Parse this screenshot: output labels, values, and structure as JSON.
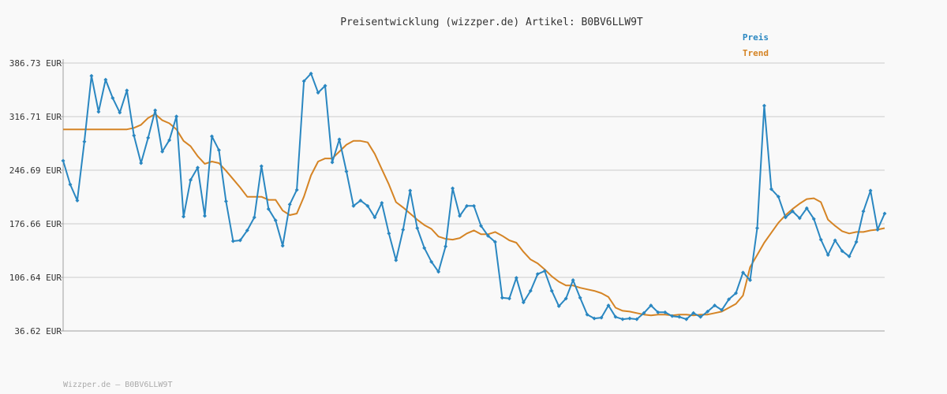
{
  "chart_data": {
    "type": "line",
    "title": "Preisentwicklung (wizzper.de) Artikel: B0BV6LLW9T",
    "xlabel": "",
    "ylabel": "",
    "ylim": [
      36.62,
      386.73
    ],
    "yticks": [
      "386.73 EUR",
      "316.71 EUR",
      "246.69 EUR",
      "176.66 EUR",
      "106.64 EUR",
      "36.62 EUR"
    ],
    "grid": true,
    "legend_position": "top-right",
    "series": [
      {
        "name": "Preis",
        "color": "#2a87c1",
        "values": [
          259,
          228,
          207,
          284,
          370,
          323,
          365,
          341,
          322,
          351,
          292,
          256,
          289,
          325,
          271,
          286,
          317,
          186,
          234,
          250,
          187,
          291,
          273,
          206,
          154,
          155,
          168,
          185,
          252,
          196,
          181,
          148,
          202,
          221,
          363,
          373,
          348,
          357,
          257,
          287,
          245,
          200,
          207,
          200,
          185,
          204,
          164,
          129,
          169,
          220,
          171,
          145,
          127,
          114,
          147,
          223,
          187,
          200,
          200,
          174,
          161,
          153,
          80,
          79,
          106,
          74,
          89,
          111,
          115,
          89,
          69,
          79,
          103,
          80,
          58,
          53,
          54,
          70,
          55,
          52,
          53,
          52,
          60,
          70,
          61,
          61,
          56,
          55,
          52,
          60,
          55,
          62,
          70,
          64,
          78,
          86,
          113,
          103,
          171,
          331,
          222,
          212,
          185,
          193,
          184,
          197,
          183,
          156,
          136,
          155,
          141,
          134,
          153,
          193,
          220,
          169,
          190
        ]
      },
      {
        "name": "Trend",
        "color": "#d58425",
        "values": [
          300,
          300,
          300,
          300,
          300,
          300,
          300,
          300,
          300,
          300,
          302,
          306,
          315,
          320,
          312,
          308,
          300,
          285,
          278,
          265,
          255,
          258,
          256,
          246,
          235,
          224,
          212,
          212,
          212,
          208,
          208,
          194,
          188,
          190,
          212,
          240,
          258,
          262,
          262,
          271,
          280,
          285,
          285,
          283,
          268,
          248,
          228,
          205,
          198,
          190,
          182,
          175,
          170,
          160,
          157,
          156,
          158,
          164,
          168,
          163,
          163,
          166,
          161,
          155,
          152,
          140,
          130,
          125,
          117,
          108,
          101,
          96,
          96,
          93,
          91,
          89,
          86,
          81,
          67,
          63,
          62,
          60,
          58,
          57,
          58,
          58,
          57,
          58,
          58,
          57,
          58,
          58,
          60,
          62,
          67,
          72,
          83,
          120,
          136,
          152,
          165,
          178,
          188,
          196,
          203,
          209,
          210,
          205,
          182,
          174,
          167,
          164,
          166,
          166,
          168,
          169,
          171
        ]
      }
    ]
  },
  "footer_text": "Wizzper.de – B0BV6LLW9T"
}
